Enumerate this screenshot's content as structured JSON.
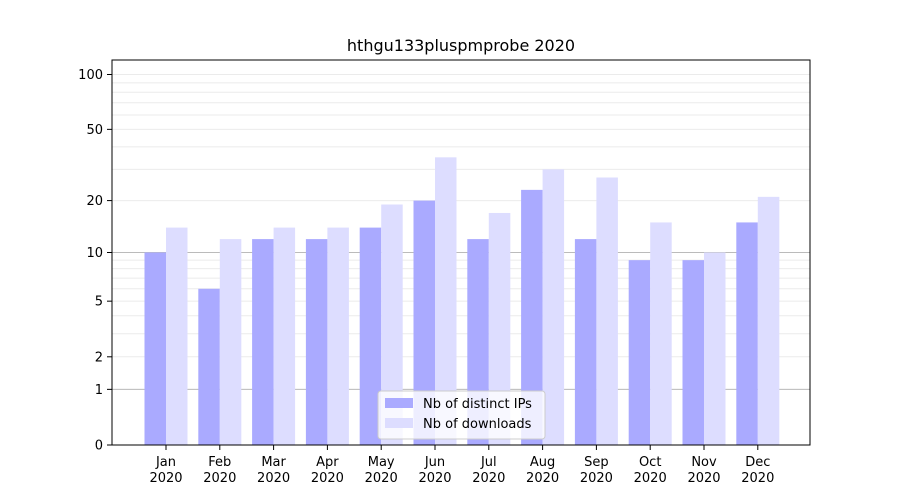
{
  "chart_data": {
    "type": "bar",
    "title": "hthgu133pluspmprobe 2020",
    "xlabel": "",
    "ylabel": "",
    "categories": [
      [
        "Jan",
        "2020"
      ],
      [
        "Feb",
        "2020"
      ],
      [
        "Mar",
        "2020"
      ],
      [
        "Apr",
        "2020"
      ],
      [
        "May",
        "2020"
      ],
      [
        "Jun",
        "2020"
      ],
      [
        "Jul",
        "2020"
      ],
      [
        "Aug",
        "2020"
      ],
      [
        "Sep",
        "2020"
      ],
      [
        "Oct",
        "2020"
      ],
      [
        "Nov",
        "2020"
      ],
      [
        "Dec",
        "2020"
      ]
    ],
    "series": [
      {
        "name": "Nb of distinct IPs",
        "color": "#aaaaff",
        "values": [
          10,
          6,
          12,
          12,
          14,
          20,
          12,
          23,
          12,
          9,
          9,
          15
        ]
      },
      {
        "name": "Nb of downloads",
        "color": "#ddddff",
        "values": [
          14,
          12,
          14,
          14,
          19,
          35,
          17,
          30,
          27,
          15,
          10,
          21
        ]
      }
    ],
    "yscale": "log(1+y)",
    "yticks": [
      0,
      1,
      2,
      5,
      10,
      20,
      50,
      100
    ],
    "ylim": [
      0,
      120
    ],
    "grid": "horizontal",
    "legend_position": "lower center"
  }
}
